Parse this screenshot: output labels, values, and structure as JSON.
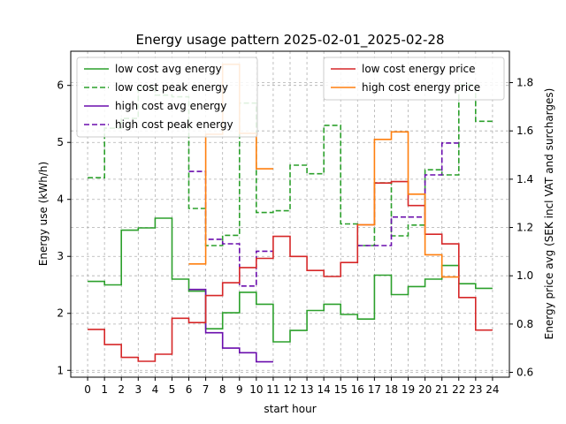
{
  "chart_data": {
    "type": "line",
    "title": "Energy usage pattern 2025-02-01_2025-02-28",
    "xlabel": "start hour",
    "ylabel": "Energy use (kWh/h)",
    "y2label": "Energy price avg (SEK incl VAT and surcharges)",
    "x_ticks": [
      "0",
      "1",
      "2",
      "3",
      "4",
      "5",
      "6",
      "7",
      "8",
      "9",
      "10",
      "11",
      "12",
      "13",
      "14",
      "15",
      "16",
      "17",
      "18",
      "19",
      "20",
      "21",
      "22",
      "23",
      "24"
    ],
    "y_ticks": [
      "1",
      "2",
      "3",
      "4",
      "5",
      "6"
    ],
    "y2_ticks": [
      "0.6",
      "0.8",
      "1.0",
      "1.2",
      "1.4",
      "1.6",
      "1.8"
    ],
    "xlim": [
      -1,
      25
    ],
    "ylim": [
      0.88,
      6.6
    ],
    "y2lim": [
      0.58,
      1.93
    ],
    "grid": true,
    "step": "post",
    "energy_series": [
      {
        "name": "low cost avg energy",
        "color": "#2ca02c",
        "dash": "solid",
        "x": [
          0,
          1,
          2,
          3,
          4,
          5,
          6,
          7,
          8,
          9,
          10,
          11,
          12,
          13,
          14,
          15,
          16,
          17,
          18,
          19,
          20,
          21,
          22,
          23
        ],
        "values": [
          2.56,
          2.5,
          3.46,
          3.5,
          3.67,
          2.6,
          2.39,
          1.73,
          2.01,
          2.37,
          2.16,
          1.5,
          1.7,
          2.05,
          2.16,
          1.98,
          1.9,
          2.67,
          2.33,
          2.47,
          2.6,
          2.84,
          2.52,
          2.44
        ]
      },
      {
        "name": "low cost peak energy",
        "color": "#2ca02c",
        "dash": "dashed",
        "x": [
          0,
          1,
          2,
          3,
          4,
          5,
          6,
          7,
          8,
          9,
          10,
          11,
          12,
          13,
          14,
          15,
          16,
          17,
          18,
          19,
          20,
          21,
          22,
          23
        ],
        "values": [
          4.38,
          5.25,
          5.42,
          5.98,
          5.83,
          5.8,
          3.84,
          3.19,
          3.37,
          5.69,
          3.77,
          3.8,
          4.6,
          4.45,
          5.3,
          3.57,
          3.19,
          4.29,
          3.36,
          3.55,
          4.52,
          4.43,
          6.01,
          5.37
        ]
      },
      {
        "name": "high cost avg energy",
        "color": "#6a0dad",
        "dash": "solid",
        "x": [
          6,
          7,
          8,
          9,
          10
        ],
        "values": [
          2.42,
          1.66,
          1.39,
          1.31,
          1.15
        ]
      },
      {
        "name": "high cost peak energy",
        "color": "#6a0dad",
        "dash": "dashed",
        "x": [
          6,
          7,
          8,
          9,
          10,
          16,
          17,
          18,
          19,
          20,
          21
        ],
        "values": [
          4.49,
          3.3,
          3.22,
          2.48,
          3.09,
          3.19,
          3.19,
          3.69,
          3.69,
          4.43,
          4.99
        ]
      }
    ],
    "price_series": [
      {
        "name": "low cost energy price",
        "color": "#d62728",
        "dash": "solid",
        "x": [
          0,
          1,
          2,
          3,
          4,
          5,
          6,
          7,
          8,
          9,
          10,
          11,
          12,
          13,
          14,
          15,
          16,
          17,
          18,
          19,
          20,
          21,
          22,
          23
        ],
        "values": [
          0.778,
          0.715,
          0.662,
          0.646,
          0.675,
          0.824,
          0.806,
          0.918,
          0.971,
          1.034,
          1.072,
          1.163,
          1.08,
          1.022,
          0.997,
          1.055,
          1.211,
          1.384,
          1.39,
          1.291,
          1.172,
          1.132,
          0.91,
          0.775
        ]
      },
      {
        "name": "high cost energy price",
        "color": "#ff7f0e",
        "dash": "solid",
        "x": [
          6,
          7,
          8,
          9,
          10,
          16,
          17,
          18,
          19,
          20,
          21
        ],
        "values": [
          1.049,
          1.586,
          1.876,
          1.59,
          1.443,
          1.211,
          1.565,
          1.596,
          1.338,
          1.087,
          0.995
        ]
      }
    ],
    "legend_left": {
      "placement": "upper left",
      "entries": [
        "low cost avg energy",
        "low cost peak energy",
        "high cost avg energy",
        "high cost peak energy"
      ]
    },
    "legend_right": {
      "placement": "upper right",
      "entries": [
        "low cost energy price",
        "high cost energy price"
      ]
    }
  }
}
